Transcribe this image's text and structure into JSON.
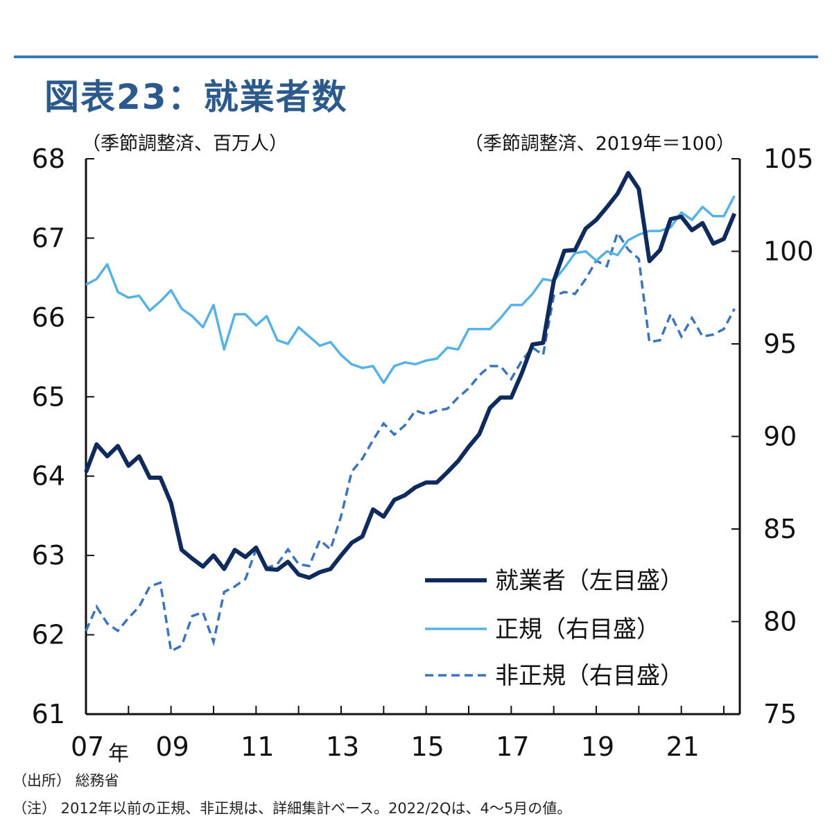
{
  "title": "図表23：就業者数",
  "left_unit": "（季節調整済、百万人）",
  "right_unit": "（季節調整済、2019年＝100）",
  "year_suffix": "年",
  "source": "（出所） 総務省",
  "note": "（注） 2012年以前の正規、非正規は、詳細集計ベース。2022/2Qは、4～5月の値。",
  "colors": {
    "employed": "#0f2a5c",
    "regular": "#55b2e6",
    "nonregular": "#3a74bd",
    "axis": "#111111",
    "title": "#2c5a8c",
    "rule": "#3a78b8"
  },
  "chart_data": {
    "type": "line",
    "x_tick_labels": [
      "07",
      "09",
      "11",
      "13",
      "15",
      "17",
      "19",
      "21"
    ],
    "x_tick_values": [
      2007.0,
      2009.0,
      2011.0,
      2013.0,
      2015.0,
      2017.0,
      2019.0,
      2021.0
    ],
    "xlim": [
      2007.0,
      2022.375
    ],
    "left_axis": {
      "ylim": [
        61,
        68
      ],
      "ticks": [
        61,
        62,
        63,
        64,
        65,
        66,
        67,
        68
      ]
    },
    "right_axis": {
      "ylim": [
        75,
        105
      ],
      "ticks": [
        75,
        80,
        85,
        90,
        95,
        100,
        105
      ]
    },
    "series": [
      {
        "key": "employed",
        "name": "就業者（左目盛）",
        "axis": "left",
        "style": "solid-thick",
        "points": [
          [
            2007.0,
            64.05
          ],
          [
            2007.25,
            64.4
          ],
          [
            2007.5,
            64.25
          ],
          [
            2007.75,
            64.38
          ],
          [
            2008.0,
            64.13
          ],
          [
            2008.25,
            64.25
          ],
          [
            2008.5,
            63.98
          ],
          [
            2008.75,
            63.98
          ],
          [
            2009.0,
            63.66
          ],
          [
            2009.25,
            63.07
          ],
          [
            2009.5,
            62.96
          ],
          [
            2009.75,
            62.86
          ],
          [
            2010.0,
            63.0
          ],
          [
            2010.25,
            62.83
          ],
          [
            2010.5,
            63.07
          ],
          [
            2010.75,
            62.98
          ],
          [
            2011.0,
            63.1
          ],
          [
            2011.25,
            62.83
          ],
          [
            2011.5,
            62.82
          ],
          [
            2011.75,
            62.92
          ],
          [
            2012.0,
            62.76
          ],
          [
            2012.25,
            62.72
          ],
          [
            2012.5,
            62.79
          ],
          [
            2012.75,
            62.83
          ],
          [
            2013.0,
            63.0
          ],
          [
            2013.25,
            63.16
          ],
          [
            2013.5,
            63.24
          ],
          [
            2013.75,
            63.58
          ],
          [
            2014.0,
            63.49
          ],
          [
            2014.25,
            63.7
          ],
          [
            2014.5,
            63.76
          ],
          [
            2014.75,
            63.86
          ],
          [
            2015.0,
            63.92
          ],
          [
            2015.25,
            63.92
          ],
          [
            2015.5,
            64.05
          ],
          [
            2015.75,
            64.19
          ],
          [
            2016.0,
            64.37
          ],
          [
            2016.25,
            64.53
          ],
          [
            2016.5,
            64.86
          ],
          [
            2016.75,
            64.99
          ],
          [
            2017.0,
            64.99
          ],
          [
            2017.25,
            65.3
          ],
          [
            2017.5,
            65.66
          ],
          [
            2017.75,
            65.68
          ],
          [
            2018.0,
            66.46
          ],
          [
            2018.25,
            66.84
          ],
          [
            2018.5,
            66.85
          ],
          [
            2018.75,
            67.12
          ],
          [
            2019.0,
            67.23
          ],
          [
            2019.25,
            67.39
          ],
          [
            2019.5,
            67.56
          ],
          [
            2019.75,
            67.82
          ],
          [
            2020.0,
            67.62
          ],
          [
            2020.25,
            66.71
          ],
          [
            2020.5,
            66.85
          ],
          [
            2020.75,
            67.24
          ],
          [
            2021.0,
            67.27
          ],
          [
            2021.25,
            67.1
          ],
          [
            2021.5,
            67.19
          ],
          [
            2021.75,
            66.93
          ],
          [
            2022.0,
            66.99
          ],
          [
            2022.25,
            67.31
          ]
        ]
      },
      {
        "key": "regular",
        "name": "正規（右目盛）",
        "axis": "right",
        "style": "solid-thin",
        "points": [
          [
            2007.0,
            98.2
          ],
          [
            2007.25,
            98.5
          ],
          [
            2007.5,
            99.3
          ],
          [
            2007.75,
            97.8
          ],
          [
            2008.0,
            97.5
          ],
          [
            2008.25,
            97.6
          ],
          [
            2008.5,
            96.8
          ],
          [
            2008.75,
            97.3
          ],
          [
            2009.0,
            97.9
          ],
          [
            2009.25,
            96.9
          ],
          [
            2009.5,
            96.5
          ],
          [
            2009.75,
            95.9
          ],
          [
            2010.0,
            97.1
          ],
          [
            2010.25,
            94.7
          ],
          [
            2010.5,
            96.6
          ],
          [
            2010.75,
            96.6
          ],
          [
            2011.0,
            96.0
          ],
          [
            2011.25,
            96.5
          ],
          [
            2011.5,
            95.2
          ],
          [
            2011.75,
            95.0
          ],
          [
            2012.0,
            95.9
          ],
          [
            2012.25,
            95.4
          ],
          [
            2012.5,
            94.9
          ],
          [
            2012.75,
            95.1
          ],
          [
            2013.0,
            94.4
          ],
          [
            2013.25,
            93.9
          ],
          [
            2013.5,
            93.7
          ],
          [
            2013.75,
            93.8
          ],
          [
            2014.0,
            92.9
          ],
          [
            2014.25,
            93.8
          ],
          [
            2014.5,
            94.0
          ],
          [
            2014.75,
            93.9
          ],
          [
            2015.0,
            94.1
          ],
          [
            2015.25,
            94.2
          ],
          [
            2015.5,
            94.8
          ],
          [
            2015.75,
            94.7
          ],
          [
            2016.0,
            95.8
          ],
          [
            2016.25,
            95.8
          ],
          [
            2016.5,
            95.8
          ],
          [
            2016.75,
            96.4
          ],
          [
            2017.0,
            97.1
          ],
          [
            2017.25,
            97.1
          ],
          [
            2017.5,
            97.7
          ],
          [
            2017.75,
            98.5
          ],
          [
            2018.0,
            98.4
          ],
          [
            2018.25,
            99.1
          ],
          [
            2018.5,
            99.9
          ],
          [
            2018.75,
            100.0
          ],
          [
            2019.0,
            99.5
          ],
          [
            2019.25,
            100.0
          ],
          [
            2019.5,
            99.8
          ],
          [
            2019.75,
            100.6
          ],
          [
            2020.0,
            100.9
          ],
          [
            2020.25,
            101.1
          ],
          [
            2020.5,
            101.1
          ],
          [
            2020.75,
            101.3
          ],
          [
            2021.0,
            102.1
          ],
          [
            2021.25,
            101.7
          ],
          [
            2021.5,
            102.4
          ],
          [
            2021.75,
            101.9
          ],
          [
            2022.0,
            101.9
          ],
          [
            2022.25,
            103.0
          ]
        ]
      },
      {
        "key": "nonregular",
        "name": "非正規（右目盛）",
        "axis": "right",
        "style": "dashed",
        "points": [
          [
            2007.0,
            79.5
          ],
          [
            2007.25,
            80.8
          ],
          [
            2007.5,
            79.9
          ],
          [
            2007.75,
            79.5
          ],
          [
            2008.0,
            80.2
          ],
          [
            2008.25,
            80.8
          ],
          [
            2008.5,
            81.9
          ],
          [
            2008.75,
            82.1
          ],
          [
            2009.0,
            78.4
          ],
          [
            2009.25,
            78.7
          ],
          [
            2009.5,
            80.3
          ],
          [
            2009.75,
            80.5
          ],
          [
            2010.0,
            78.9
          ],
          [
            2010.25,
            81.6
          ],
          [
            2010.5,
            81.9
          ],
          [
            2010.75,
            82.3
          ],
          [
            2011.0,
            83.9
          ],
          [
            2011.25,
            82.9
          ],
          [
            2011.5,
            83.1
          ],
          [
            2011.75,
            83.9
          ],
          [
            2012.0,
            83.1
          ],
          [
            2012.25,
            83.0
          ],
          [
            2012.5,
            84.4
          ],
          [
            2012.75,
            83.9
          ],
          [
            2013.0,
            85.7
          ],
          [
            2013.25,
            88.1
          ],
          [
            2013.5,
            88.8
          ],
          [
            2013.75,
            89.8
          ],
          [
            2014.0,
            90.7
          ],
          [
            2014.25,
            90.1
          ],
          [
            2014.5,
            90.6
          ],
          [
            2014.75,
            91.4
          ],
          [
            2015.0,
            91.2
          ],
          [
            2015.25,
            91.4
          ],
          [
            2015.5,
            91.5
          ],
          [
            2015.75,
            92.1
          ],
          [
            2016.0,
            92.6
          ],
          [
            2016.25,
            93.3
          ],
          [
            2016.5,
            93.8
          ],
          [
            2016.75,
            93.8
          ],
          [
            2017.0,
            93.1
          ],
          [
            2017.25,
            94.1
          ],
          [
            2017.5,
            94.8
          ],
          [
            2017.75,
            94.4
          ],
          [
            2018.0,
            97.6
          ],
          [
            2018.25,
            97.8
          ],
          [
            2018.5,
            97.7
          ],
          [
            2018.75,
            98.5
          ],
          [
            2019.0,
            99.5
          ],
          [
            2019.25,
            99.2
          ],
          [
            2019.5,
            101.0
          ],
          [
            2019.75,
            100.1
          ],
          [
            2020.0,
            99.6
          ],
          [
            2020.25,
            95.1
          ],
          [
            2020.5,
            95.2
          ],
          [
            2020.75,
            96.6
          ],
          [
            2021.0,
            95.4
          ],
          [
            2021.25,
            96.4
          ],
          [
            2021.5,
            95.4
          ],
          [
            2021.75,
            95.5
          ],
          [
            2022.0,
            95.8
          ],
          [
            2022.25,
            96.9
          ]
        ]
      }
    ],
    "legend": {
      "placement": "bottom-right"
    }
  }
}
